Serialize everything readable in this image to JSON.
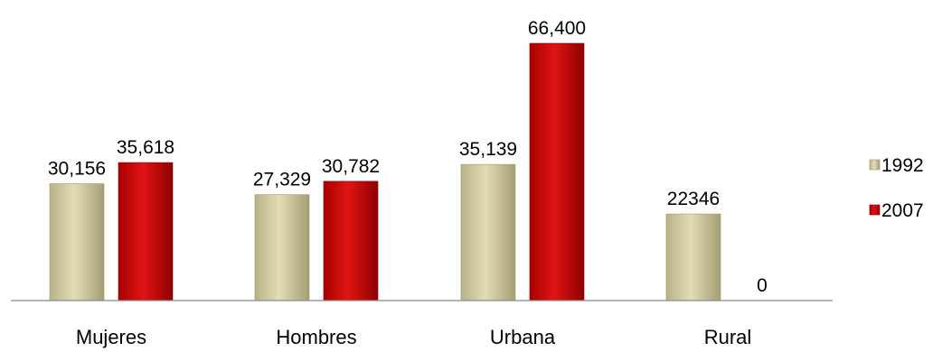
{
  "chart_data": {
    "type": "bar",
    "categories": [
      "Mujeres",
      "Hombres",
      "Urbana",
      "Rural"
    ],
    "series": [
      {
        "name": "1992",
        "values": [
          30156,
          27329,
          35139,
          22346
        ],
        "labels": [
          "30,156",
          "27,329",
          "35,139",
          "22346"
        ],
        "color": "#d6cfa4"
      },
      {
        "name": "2007",
        "values": [
          35618,
          30782,
          66400,
          0
        ],
        "labels": [
          "35,618",
          "30,782",
          "66,400",
          "0"
        ],
        "color": "#c00000"
      }
    ],
    "ylim": [
      0,
      70000
    ],
    "grid": false,
    "legend_position": "right"
  }
}
